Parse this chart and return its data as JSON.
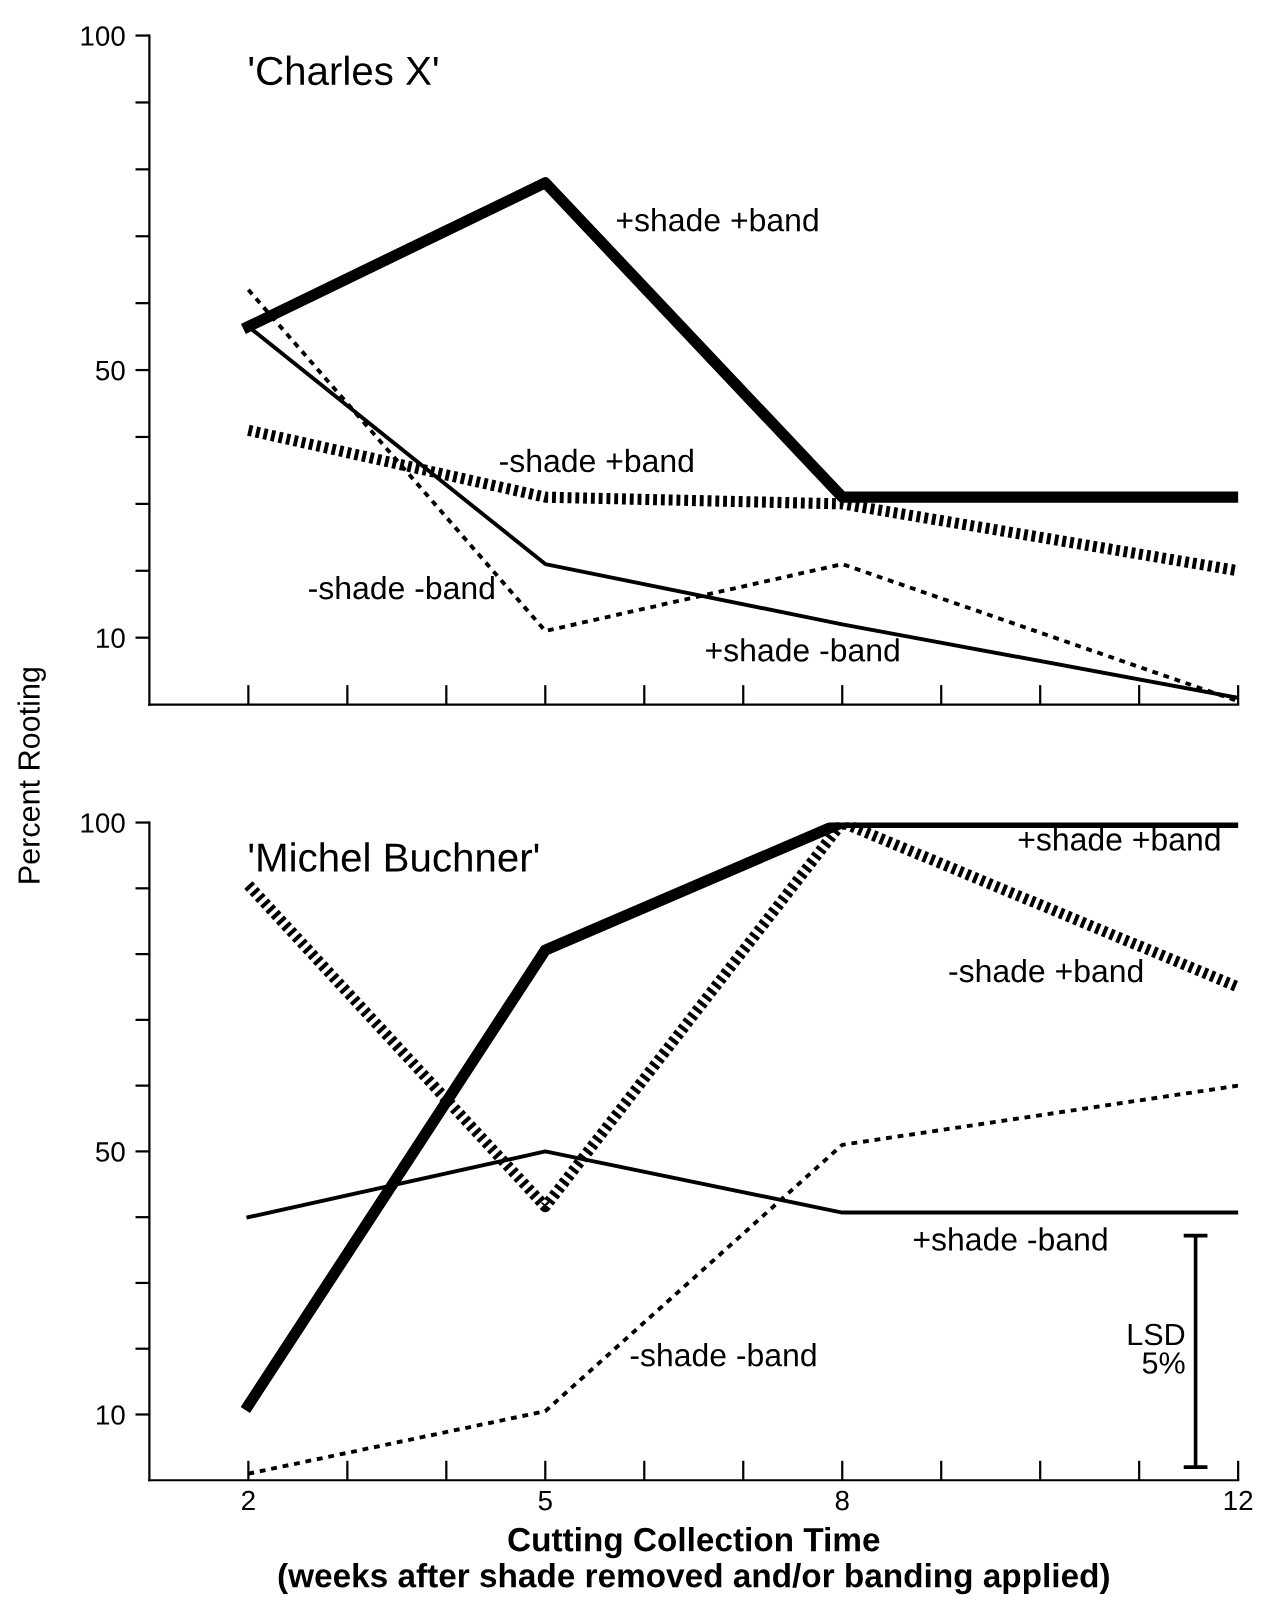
{
  "chart_data": [
    {
      "type": "line",
      "title": "'Charles X'",
      "ylabel": "Percent Rooting",
      "x": [
        2,
        5,
        8,
        12
      ],
      "xlim": [
        1,
        12
      ],
      "ylim": [
        0,
        100
      ],
      "xticks": [
        {
          "value": 2,
          "label": null
        },
        {
          "value": 3,
          "label": null
        },
        {
          "value": 4,
          "label": null
        },
        {
          "value": 5,
          "label": null
        },
        {
          "value": 6,
          "label": null
        },
        {
          "value": 7,
          "label": null
        },
        {
          "value": 8,
          "label": null
        },
        {
          "value": 9,
          "label": null
        },
        {
          "value": 10,
          "label": null
        },
        {
          "value": 11,
          "label": null
        },
        {
          "value": 12,
          "label": null
        }
      ],
      "yticks": [
        10,
        {
          "value": 20,
          "label": null
        },
        {
          "value": 30,
          "label": null
        },
        {
          "value": 40,
          "label": null
        },
        50,
        {
          "value": 60,
          "label": null
        },
        {
          "value": 70,
          "label": null
        },
        {
          "value": 80,
          "label": null
        },
        {
          "value": 90,
          "label": null
        },
        100
      ],
      "tick_labels": "y",
      "grid": false,
      "legend": false,
      "marker": "none",
      "series": [
        {
          "name": "+shade +band",
          "color": "#000000",
          "line_style": "solid",
          "values": [
            56.5,
            78,
            31,
            31
          ]
        },
        {
          "name": "-shade +band",
          "color": "#000000",
          "line_style": "dotted",
          "values": [
            41,
            31,
            30,
            20
          ]
        },
        {
          "name": "+shade -band",
          "color": "#000000",
          "line_style": "solid",
          "values": [
            56.5,
            21,
            12,
            1
          ]
        },
        {
          "name": "-shade -band",
          "color": "#000000",
          "line_style": "dotted",
          "values": [
            62,
            11,
            21,
            0.5
          ]
        }
      ]
    },
    {
      "type": "line",
      "title": "'Michel Buchner'",
      "xlabel": "Cutting Collection Time\n(weeks after shade removed and/or banding applied)",
      "x": [
        2,
        5,
        8,
        12
      ],
      "xlim": [
        1,
        12
      ],
      "ylim": [
        0,
        100
      ],
      "xticks": [
        2,
        {
          "value": 3,
          "label": null
        },
        {
          "value": 4,
          "label": null
        },
        5,
        {
          "value": 6,
          "label": null
        },
        {
          "value": 7,
          "label": null
        },
        8,
        {
          "value": 9,
          "label": null
        },
        {
          "value": 10,
          "label": null
        },
        {
          "value": 11,
          "label": null
        },
        12
      ],
      "yticks": [
        10,
        {
          "value": 20,
          "label": null
        },
        {
          "value": 30,
          "label": null
        },
        {
          "value": 40,
          "label": null
        },
        50,
        {
          "value": 60,
          "label": null
        },
        {
          "value": 70,
          "label": null
        },
        {
          "value": 80,
          "label": null
        },
        {
          "value": 90,
          "label": null
        },
        100
      ],
      "grid": false,
      "legend": false,
      "marker": "none",
      "series": [
        {
          "name": "+shade +band",
          "color": "#000000",
          "line_style": "solid",
          "values": [
            11.4,
            80.6,
            100,
            100
          ]
        },
        {
          "name": "-shade +band",
          "color": "#000000",
          "line_style": "dotted",
          "values": [
            90.5,
            41.6,
            100,
            75
          ]
        },
        {
          "name": "+shade -band",
          "color": "#000000",
          "line_style": "solid",
          "values": [
            40,
            50,
            40.7,
            40.7
          ]
        },
        {
          "name": "-shade -band",
          "color": "#000000",
          "line_style": "dotted",
          "values": [
            1,
            10.5,
            51,
            60
          ]
        },
        {
          "type": "line",
          "color": "#000000",
          "line_style": "solid",
          "x": [
            11.57,
            11.57
          ],
          "values": [
            2,
            37.2
          ]
        }
      ],
      "annotations": [
        "LSD\n5%"
      ]
    }
  ]
}
